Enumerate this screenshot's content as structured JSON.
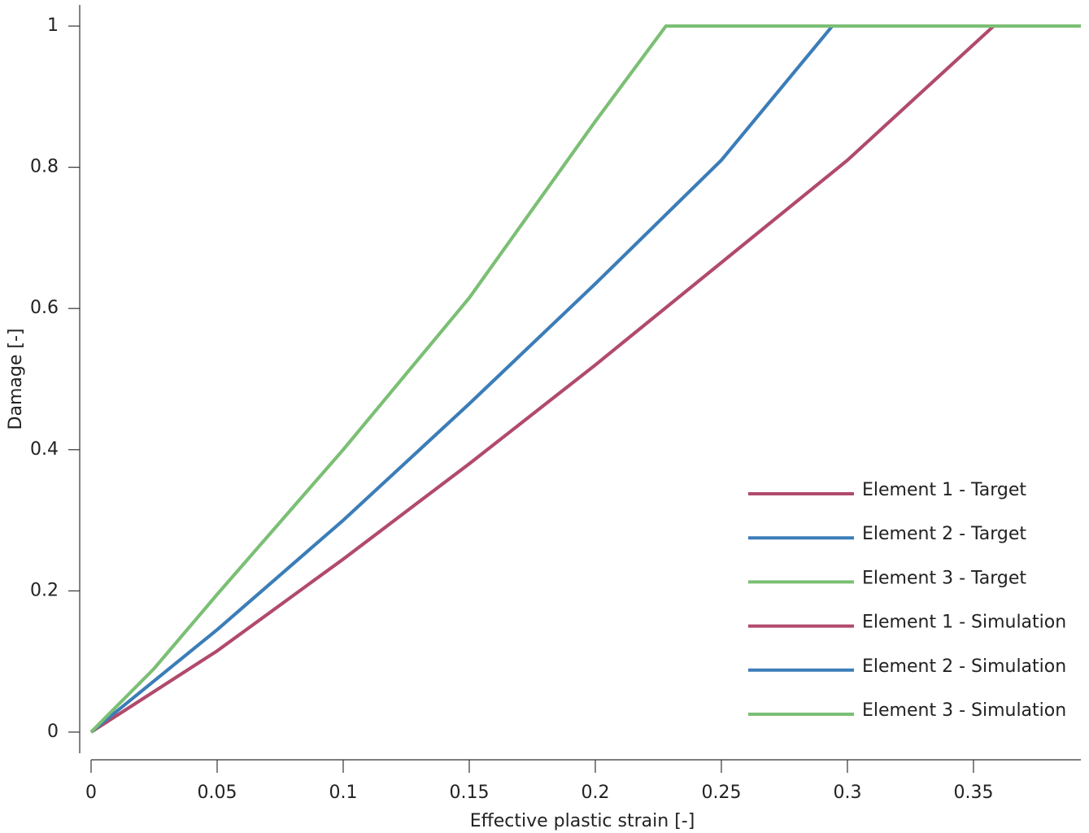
{
  "chart_data": {
    "type": "line",
    "xlabel": "Effective plastic strain [-]",
    "ylabel": "Damage [-]",
    "xlim": [
      0,
      0.3926
    ],
    "ylim": [
      -0.03,
      1.03
    ],
    "xticks": [
      0,
      0.05,
      0.1,
      0.15,
      0.2,
      0.25,
      0.3,
      0.35
    ],
    "yticks": [
      0,
      0.2,
      0.4,
      0.6,
      0.8,
      1
    ],
    "legend": "lower right",
    "series": [
      {
        "name": "Element 1 - Target",
        "color": "#b14a6c",
        "x": [
          0,
          0.05,
          0.1,
          0.15,
          0.2,
          0.25,
          0.3,
          0.358,
          0.3926
        ],
        "values": [
          0,
          0.115,
          0.245,
          0.38,
          0.52,
          0.665,
          0.81,
          1,
          1
        ]
      },
      {
        "name": "Element 2 - Target",
        "color": "#3b7db8",
        "x": [
          0,
          0.05,
          0.1,
          0.15,
          0.2,
          0.25,
          0.294,
          0.3926
        ],
        "values": [
          0,
          0.145,
          0.3,
          0.465,
          0.635,
          0.81,
          1,
          1
        ]
      },
      {
        "name": "Element 3 - Target",
        "color": "#7bbf74",
        "x": [
          0,
          0.025,
          0.05,
          0.1,
          0.15,
          0.2,
          0.228,
          0.3926
        ],
        "values": [
          0,
          0.09,
          0.195,
          0.4,
          0.615,
          0.865,
          1,
          1
        ]
      },
      {
        "name": "Element 1 - Simulation",
        "color": "#b14a6c",
        "x": [
          0,
          0.05,
          0.1,
          0.15,
          0.2,
          0.25,
          0.3,
          0.358,
          0.3926
        ],
        "values": [
          0,
          0.115,
          0.245,
          0.38,
          0.52,
          0.665,
          0.81,
          1,
          1
        ]
      },
      {
        "name": "Element 2 - Simulation",
        "color": "#3b7db8",
        "x": [
          0,
          0.05,
          0.1,
          0.15,
          0.2,
          0.25,
          0.294,
          0.3926
        ],
        "values": [
          0,
          0.145,
          0.3,
          0.465,
          0.635,
          0.81,
          1,
          1
        ]
      },
      {
        "name": "Element 3 - Simulation",
        "color": "#7bbf74",
        "x": [
          0,
          0.025,
          0.05,
          0.1,
          0.15,
          0.2,
          0.228,
          0.3926
        ],
        "values": [
          0,
          0.09,
          0.195,
          0.4,
          0.615,
          0.865,
          1,
          1
        ]
      }
    ]
  }
}
